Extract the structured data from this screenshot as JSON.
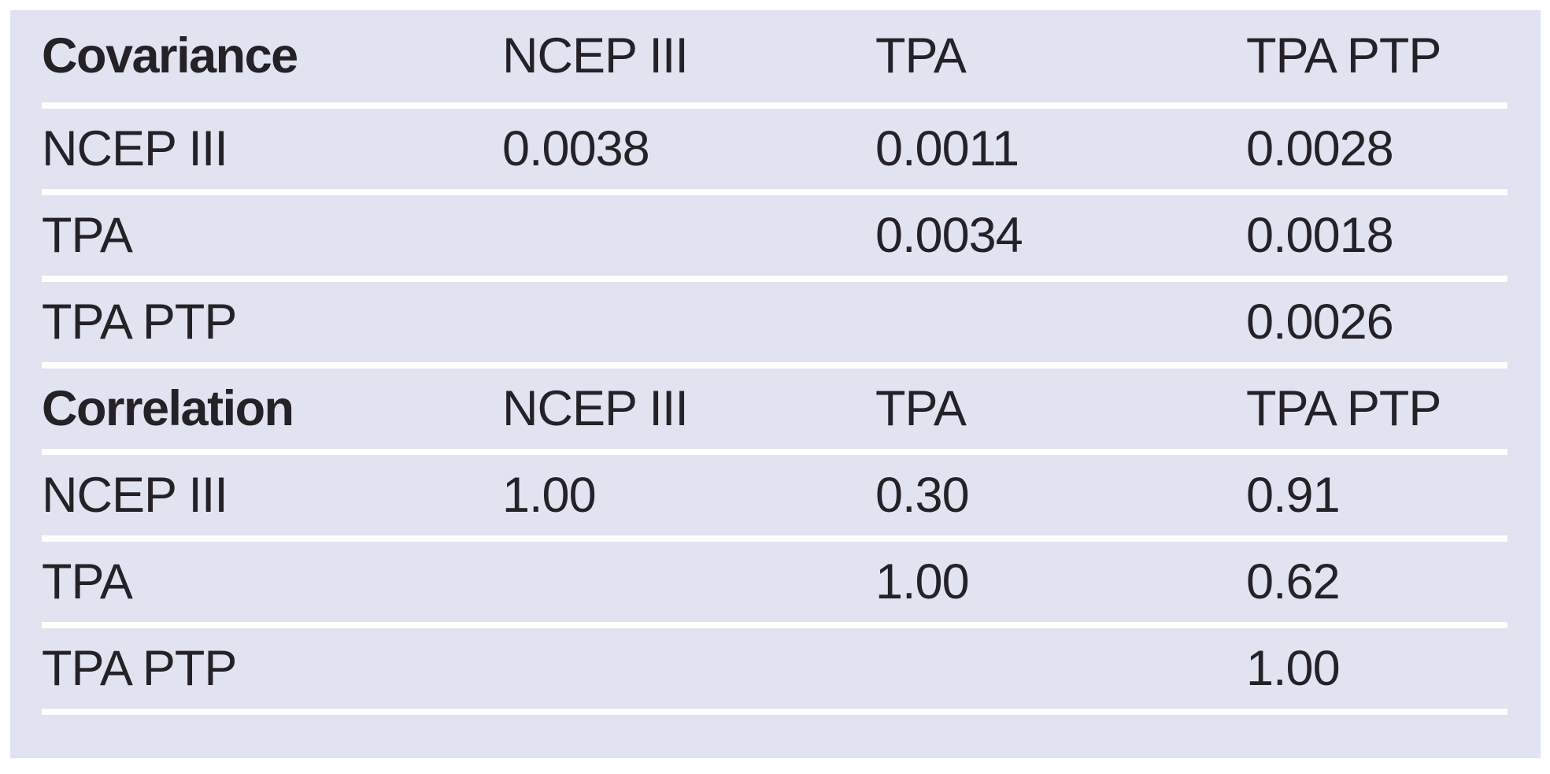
{
  "colors": {
    "panel_background": "#e1e3f0",
    "divider": "#ffffff",
    "text": "#242127"
  },
  "table": {
    "sections": [
      {
        "header": {
          "label": "Covariance",
          "columns": [
            "NCEP III",
            "TPA",
            "TPA PTP"
          ]
        },
        "rows": [
          {
            "label": "NCEP III",
            "values": [
              "0.0038",
              "0.0011",
              "0.0028"
            ]
          },
          {
            "label": "TPA",
            "values": [
              "",
              "0.0034",
              "0.0018"
            ]
          },
          {
            "label": "TPA PTP",
            "values": [
              "",
              "",
              "0.0026"
            ]
          }
        ]
      },
      {
        "header": {
          "label": "Correlation",
          "columns": [
            "NCEP III",
            "TPA",
            "TPA PTP"
          ]
        },
        "rows": [
          {
            "label": "NCEP III",
            "values": [
              "1.00",
              "0.30",
              "0.91"
            ]
          },
          {
            "label": "TPA",
            "values": [
              "",
              "1.00",
              "0.62"
            ]
          },
          {
            "label": "TPA PTP",
            "values": [
              "",
              "",
              "1.00"
            ]
          }
        ]
      }
    ]
  },
  "chart_data": [
    {
      "type": "table",
      "title": "Covariance",
      "columns": [
        "",
        "NCEP III",
        "TPA",
        "TPA PTP"
      ],
      "rows": [
        [
          "NCEP III",
          0.0038,
          0.0011,
          0.0028
        ],
        [
          "TPA",
          null,
          0.0034,
          0.0018
        ],
        [
          "TPA PTP",
          null,
          null,
          0.0026
        ]
      ],
      "layout_hints": "upper-triangular matrix, blank cells below diagonal, white row rules on lavender background"
    },
    {
      "type": "table",
      "title": "Correlation",
      "columns": [
        "",
        "NCEP III",
        "TPA",
        "TPA PTP"
      ],
      "rows": [
        [
          "NCEP III",
          1.0,
          0.3,
          0.91
        ],
        [
          "TPA",
          null,
          1.0,
          0.62
        ],
        [
          "TPA PTP",
          null,
          null,
          1.0
        ]
      ],
      "layout_hints": "upper-triangular matrix, blank cells below diagonal, white row rules on lavender background"
    }
  ]
}
